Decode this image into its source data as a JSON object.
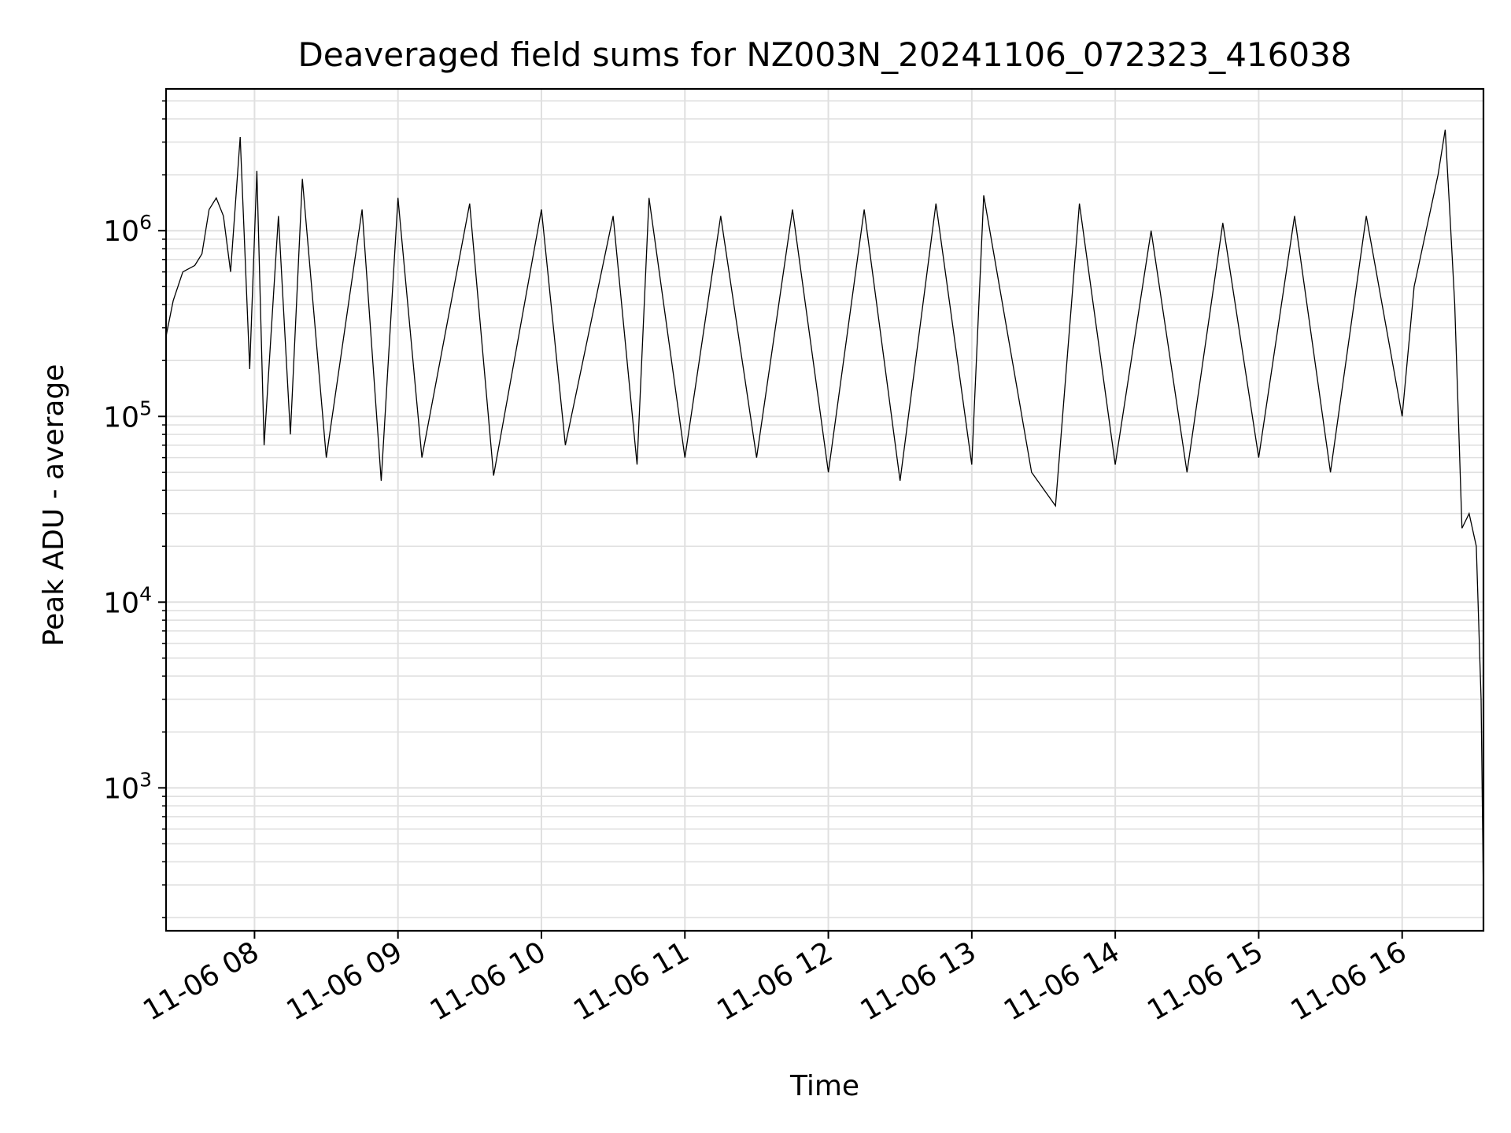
{
  "chart_data": {
    "type": "line",
    "title": "Deaveraged field sums for NZ003N_20241106_072323_416038",
    "xlabel": "Time",
    "ylabel": "Peak ADU - average",
    "yscale": "log",
    "xlim": [
      "2024-11-06 07:23:00",
      "2024-11-06 16:34:00"
    ],
    "ylim": [
      170,
      5800000
    ],
    "grid": true,
    "line_color": "#000000",
    "x_ticks": [
      {
        "value": "2024-11-06 08:00",
        "label": "11-06 08"
      },
      {
        "value": "2024-11-06 09:00",
        "label": "11-06 09"
      },
      {
        "value": "2024-11-06 10:00",
        "label": "11-06 10"
      },
      {
        "value": "2024-11-06 11:00",
        "label": "11-06 11"
      },
      {
        "value": "2024-11-06 12:00",
        "label": "11-06 12"
      },
      {
        "value": "2024-11-06 13:00",
        "label": "11-06 13"
      },
      {
        "value": "2024-11-06 14:00",
        "label": "11-06 14"
      },
      {
        "value": "2024-11-06 15:00",
        "label": "11-06 15"
      },
      {
        "value": "2024-11-06 16:00",
        "label": "11-06 16"
      }
    ],
    "y_ticks": [
      {
        "value": 1000,
        "base": "10",
        "exp": "3"
      },
      {
        "value": 10000,
        "base": "10",
        "exp": "4"
      },
      {
        "value": 100000,
        "base": "10",
        "exp": "5"
      },
      {
        "value": 1000000,
        "base": "10",
        "exp": "6"
      }
    ],
    "series": [
      {
        "points": [
          [
            "2024-11-06 07:23",
            270000
          ],
          [
            "2024-11-06 07:26",
            420000
          ],
          [
            "2024-11-06 07:30",
            600000
          ],
          [
            "2024-11-06 07:35",
            650000
          ],
          [
            "2024-11-06 07:38",
            750000
          ],
          [
            "2024-11-06 07:41",
            1300000
          ],
          [
            "2024-11-06 07:44",
            1500000
          ],
          [
            "2024-11-06 07:47",
            1200000
          ],
          [
            "2024-11-06 07:50",
            600000
          ],
          [
            "2024-11-06 07:54",
            3200000
          ],
          [
            "2024-11-06 07:58",
            180000
          ],
          [
            "2024-11-06 08:01",
            2100000
          ],
          [
            "2024-11-06 08:04",
            70000
          ],
          [
            "2024-11-06 08:10",
            1200000
          ],
          [
            "2024-11-06 08:15",
            80000
          ],
          [
            "2024-11-06 08:20",
            1900000
          ],
          [
            "2024-11-06 08:30",
            60000
          ],
          [
            "2024-11-06 08:45",
            1300000
          ],
          [
            "2024-11-06 08:53",
            45000
          ],
          [
            "2024-11-06 09:00",
            1500000
          ],
          [
            "2024-11-06 09:10",
            60000
          ],
          [
            "2024-11-06 09:30",
            1400000
          ],
          [
            "2024-11-06 09:40",
            48000
          ],
          [
            "2024-11-06 10:00",
            1300000
          ],
          [
            "2024-11-06 10:10",
            70000
          ],
          [
            "2024-11-06 10:30",
            1200000
          ],
          [
            "2024-11-06 10:40",
            55000
          ],
          [
            "2024-11-06 10:45",
            1500000
          ],
          [
            "2024-11-06 11:00",
            60000
          ],
          [
            "2024-11-06 11:15",
            1200000
          ],
          [
            "2024-11-06 11:30",
            60000
          ],
          [
            "2024-11-06 11:45",
            1300000
          ],
          [
            "2024-11-06 12:00",
            50000
          ],
          [
            "2024-11-06 12:15",
            1300000
          ],
          [
            "2024-11-06 12:30",
            45000
          ],
          [
            "2024-11-06 12:45",
            1400000
          ],
          [
            "2024-11-06 13:00",
            55000
          ],
          [
            "2024-11-06 13:05",
            1550000
          ],
          [
            "2024-11-06 13:25",
            50000
          ],
          [
            "2024-11-06 13:35",
            33000
          ],
          [
            "2024-11-06 13:45",
            1400000
          ],
          [
            "2024-11-06 14:00",
            55000
          ],
          [
            "2024-11-06 14:15",
            1000000
          ],
          [
            "2024-11-06 14:30",
            50000
          ],
          [
            "2024-11-06 14:45",
            1100000
          ],
          [
            "2024-11-06 15:00",
            60000
          ],
          [
            "2024-11-06 15:15",
            1200000
          ],
          [
            "2024-11-06 15:30",
            50000
          ],
          [
            "2024-11-06 15:45",
            1200000
          ],
          [
            "2024-11-06 16:00",
            100000
          ],
          [
            "2024-11-06 16:05",
            500000
          ],
          [
            "2024-11-06 16:10",
            1000000
          ],
          [
            "2024-11-06 16:15",
            2000000
          ],
          [
            "2024-11-06 16:18",
            3500000
          ],
          [
            "2024-11-06 16:20",
            1200000
          ],
          [
            "2024-11-06 16:22",
            400000
          ],
          [
            "2024-11-06 16:25",
            25000
          ],
          [
            "2024-11-06 16:28",
            30000
          ],
          [
            "2024-11-06 16:31",
            20000
          ],
          [
            "2024-11-06 16:33",
            3000
          ],
          [
            "2024-11-06 16:34",
            250
          ]
        ]
      }
    ]
  }
}
